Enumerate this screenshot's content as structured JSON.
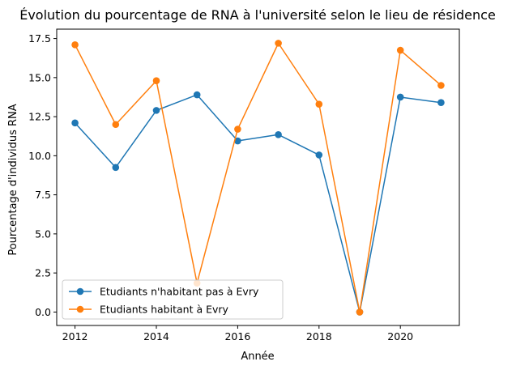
{
  "chart_data": {
    "type": "line",
    "title": "Évolution du pourcentage de RNA à l'université selon le lieu de résidence",
    "xlabel": "Année",
    "ylabel": "Pourcentage d'individus RNA",
    "x": [
      2012,
      2013,
      2014,
      2015,
      2016,
      2017,
      2018,
      2019,
      2020,
      2021
    ],
    "xticks": [
      2012,
      2014,
      2016,
      2018,
      2020
    ],
    "xtick_labels": [
      "2012",
      "2014",
      "2016",
      "2018",
      "2020"
    ],
    "yticks": [
      0.0,
      2.5,
      5.0,
      7.5,
      10.0,
      12.5,
      15.0,
      17.5
    ],
    "ytick_labels": [
      "0.0",
      "2.5",
      "5.0",
      "7.5",
      "10.0",
      "12.5",
      "15.0",
      "17.5"
    ],
    "xlim": [
      2011.55,
      2021.45
    ],
    "ylim": [
      -0.86,
      18.1
    ],
    "grid": false,
    "legend_position": "lower-left",
    "series": [
      {
        "name": "Etudiants n'habitant pas à Evry",
        "color": "#1f77b4",
        "values": [
          12.1,
          9.25,
          12.9,
          13.9,
          10.95,
          11.35,
          10.05,
          0.0,
          13.75,
          13.4
        ]
      },
      {
        "name": "Etudiants habitant à Evry",
        "color": "#ff7f0e",
        "values": [
          17.1,
          12.0,
          14.8,
          1.85,
          11.7,
          17.2,
          13.3,
          0.0,
          16.75,
          14.5
        ]
      }
    ]
  }
}
